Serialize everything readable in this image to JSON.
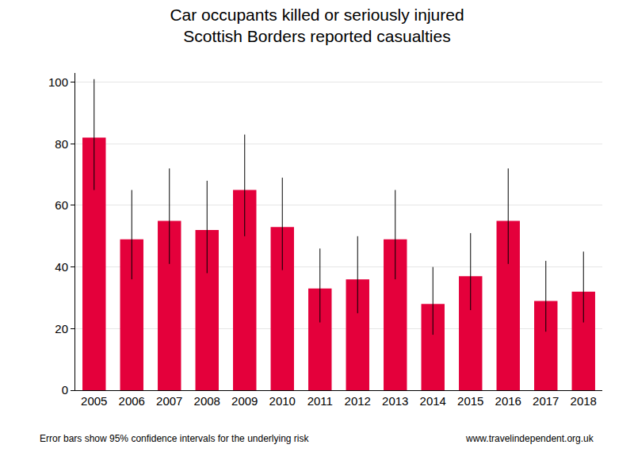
{
  "chart_data": {
    "type": "bar",
    "title": "Car occupants killed or seriously injured",
    "subtitle": "Scottish Borders reported casualties",
    "categories": [
      "2005",
      "2006",
      "2007",
      "2008",
      "2009",
      "2010",
      "2011",
      "2012",
      "2013",
      "2014",
      "2015",
      "2016",
      "2017",
      "2018"
    ],
    "values": [
      82,
      49,
      55,
      52,
      65,
      53,
      33,
      36,
      49,
      28,
      37,
      55,
      29,
      32
    ],
    "error_low": [
      65,
      36,
      41,
      38,
      50,
      39,
      22,
      25,
      36,
      18,
      26,
      41,
      19,
      22
    ],
    "error_high": [
      101,
      65,
      72,
      68,
      83,
      69,
      46,
      50,
      65,
      40,
      51,
      72,
      42,
      45
    ],
    "color": "#e4003b",
    "ylim": [
      0,
      103
    ],
    "yticks": [
      0,
      20,
      40,
      60,
      80,
      100
    ],
    "grid": true,
    "annotations": [
      "Error bars show 95% confidence intervals for the underlying risk",
      "www.travelindependent.org.uk"
    ]
  }
}
